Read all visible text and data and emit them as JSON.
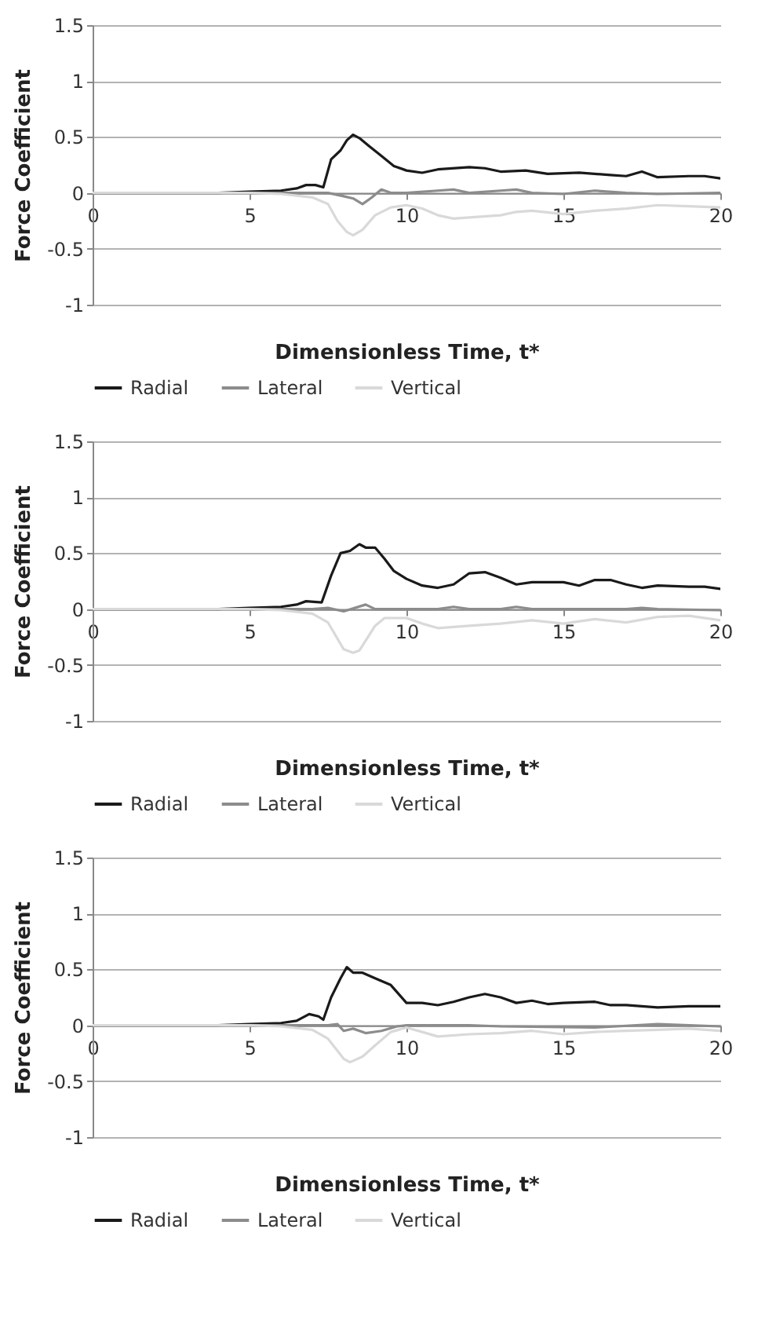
{
  "chart_data": [
    {
      "type": "line",
      "xlabel": "Dimensionless Time, t*",
      "ylabel": "Force Coefficient",
      "xlim": [
        0,
        20
      ],
      "ylim": [
        -1,
        1.5
      ],
      "xticks": [
        0,
        5,
        10,
        15,
        20
      ],
      "yticks": [
        -1,
        -0.5,
        0,
        0.5,
        1,
        1.5
      ],
      "grid": "y",
      "legend": "bottom",
      "series": [
        {
          "name": "Radial",
          "color": "#1a1a1a",
          "x": [
            0,
            4,
            5,
            6,
            6.5,
            6.8,
            7.1,
            7.35,
            7.6,
            7.9,
            8.1,
            8.3,
            8.5,
            8.8,
            9.2,
            9.6,
            10,
            10.5,
            11,
            12,
            12.5,
            13,
            13.8,
            14.5,
            15.5,
            16.5,
            17,
            17.5,
            18,
            19,
            19.5,
            20
          ],
          "values": [
            0,
            0,
            0.01,
            0.02,
            0.04,
            0.07,
            0.07,
            0.05,
            0.3,
            0.38,
            0.47,
            0.52,
            0.49,
            0.42,
            0.33,
            0.24,
            0.2,
            0.18,
            0.21,
            0.23,
            0.22,
            0.19,
            0.2,
            0.17,
            0.18,
            0.16,
            0.15,
            0.19,
            0.14,
            0.15,
            0.15,
            0.13
          ]
        },
        {
          "name": "Lateral",
          "color": "#8c8c8c",
          "x": [
            0,
            7.5,
            8,
            8.3,
            8.6,
            8.9,
            9.2,
            9.5,
            10,
            11,
            11.5,
            12,
            13,
            13.5,
            14,
            15,
            16,
            17,
            18,
            20
          ],
          "values": [
            0,
            0,
            -0.03,
            -0.05,
            -0.1,
            -0.04,
            0.03,
            0,
            0,
            0.02,
            0.03,
            0,
            0.02,
            0.03,
            0,
            -0.01,
            0.02,
            0,
            -0.01,
            0
          ]
        },
        {
          "name": "Vertical",
          "color": "#d9d9d9",
          "x": [
            0,
            5,
            6,
            7,
            7.5,
            7.8,
            8.1,
            8.3,
            8.6,
            9,
            9.5,
            10,
            10.5,
            11,
            11.5,
            12,
            13,
            13.5,
            14,
            15,
            16,
            17,
            18,
            19,
            20
          ],
          "values": [
            0,
            0,
            -0.01,
            -0.04,
            -0.1,
            -0.25,
            -0.35,
            -0.38,
            -0.33,
            -0.2,
            -0.13,
            -0.11,
            -0.14,
            -0.2,
            -0.23,
            -0.22,
            -0.2,
            -0.17,
            -0.16,
            -0.19,
            -0.16,
            -0.14,
            -0.11,
            -0.12,
            -0.13
          ]
        }
      ]
    },
    {
      "type": "line",
      "xlabel": "Dimensionless Time, t*",
      "ylabel": "Force Coefficient",
      "xlim": [
        0,
        20
      ],
      "ylim": [
        -1,
        1.5
      ],
      "xticks": [
        0,
        5,
        10,
        15,
        20
      ],
      "yticks": [
        -1,
        -0.5,
        0,
        0.5,
        1,
        1.5
      ],
      "grid": "y",
      "legend": "bottom",
      "series": [
        {
          "name": "Radial",
          "color": "#1a1a1a",
          "x": [
            0,
            4,
            5,
            6,
            6.5,
            6.8,
            7.3,
            7.6,
            7.9,
            8.2,
            8.5,
            8.7,
            9,
            9.3,
            9.6,
            10,
            10.5,
            11,
            11.5,
            12,
            12.5,
            13,
            13.5,
            14,
            15,
            15.5,
            16,
            16.5,
            17,
            17.5,
            18,
            19,
            19.5,
            20
          ],
          "values": [
            0,
            0,
            0.01,
            0.02,
            0.04,
            0.07,
            0.06,
            0.3,
            0.5,
            0.52,
            0.58,
            0.55,
            0.55,
            0.45,
            0.34,
            0.27,
            0.21,
            0.19,
            0.22,
            0.32,
            0.33,
            0.28,
            0.22,
            0.24,
            0.24,
            0.21,
            0.26,
            0.26,
            0.22,
            0.19,
            0.21,
            0.2,
            0.2,
            0.18
          ]
        },
        {
          "name": "Lateral",
          "color": "#8c8c8c",
          "x": [
            0,
            7,
            7.5,
            8,
            8.7,
            9,
            11,
            11.5,
            12,
            13,
            13.5,
            14,
            17,
            17.5,
            18,
            20
          ],
          "values": [
            0,
            0,
            0.01,
            -0.02,
            0.04,
            0,
            0,
            0.02,
            0,
            0,
            0.02,
            0,
            0,
            0.01,
            0,
            -0.01
          ]
        },
        {
          "name": "Vertical",
          "color": "#d9d9d9",
          "x": [
            0,
            5,
            6,
            7,
            7.5,
            8,
            8.3,
            8.5,
            9,
            9.3,
            10,
            10.5,
            11,
            12,
            13,
            14,
            15,
            16,
            17,
            18,
            19,
            20
          ],
          "values": [
            0,
            0,
            -0.01,
            -0.04,
            -0.12,
            -0.36,
            -0.39,
            -0.37,
            -0.15,
            -0.08,
            -0.08,
            -0.13,
            -0.17,
            -0.15,
            -0.13,
            -0.1,
            -0.13,
            -0.09,
            -0.12,
            -0.07,
            -0.06,
            -0.1
          ]
        }
      ]
    },
    {
      "type": "line",
      "xlabel": "Dimensionless Time, t*",
      "ylabel": "Force Coefficient",
      "xlim": [
        0,
        20
      ],
      "ylim": [
        -1,
        1.5
      ],
      "xticks": [
        0,
        5,
        10,
        15,
        20
      ],
      "yticks": [
        -1,
        -0.5,
        0,
        0.5,
        1,
        1.5
      ],
      "grid": "y",
      "legend": "bottom",
      "series": [
        {
          "name": "Radial",
          "color": "#1a1a1a",
          "x": [
            0,
            4,
            5,
            6,
            6.5,
            6.9,
            7.2,
            7.35,
            7.6,
            7.9,
            8.1,
            8.3,
            8.6,
            9,
            9.5,
            10,
            10.5,
            11,
            11.5,
            12,
            12.5,
            13,
            13.5,
            14,
            14.5,
            15,
            16,
            16.5,
            17,
            18,
            19,
            20
          ],
          "values": [
            0,
            0,
            0.01,
            0.02,
            0.04,
            0.1,
            0.08,
            0.05,
            0.25,
            0.42,
            0.52,
            0.47,
            0.47,
            0.42,
            0.36,
            0.2,
            0.2,
            0.18,
            0.21,
            0.25,
            0.28,
            0.25,
            0.2,
            0.22,
            0.19,
            0.2,
            0.21,
            0.18,
            0.18,
            0.16,
            0.17,
            0.17
          ]
        },
        {
          "name": "Lateral",
          "color": "#8c8c8c",
          "x": [
            0,
            7.5,
            7.8,
            8,
            8.3,
            8.7,
            9.2,
            9.7,
            10,
            12,
            13,
            16,
            18,
            20
          ],
          "values": [
            0,
            0,
            0.01,
            -0.05,
            -0.03,
            -0.07,
            -0.05,
            -0.01,
            0,
            0,
            -0.01,
            -0.02,
            0.01,
            -0.01
          ]
        },
        {
          "name": "Vertical",
          "color": "#d9d9d9",
          "x": [
            0,
            5,
            6,
            7,
            7.5,
            8,
            8.2,
            8.6,
            9,
            9.5,
            10,
            10.5,
            11,
            12,
            13,
            14,
            15,
            16,
            17,
            18,
            19,
            20
          ],
          "values": [
            0,
            0,
            -0.01,
            -0.04,
            -0.12,
            -0.3,
            -0.33,
            -0.28,
            -0.18,
            -0.06,
            -0.02,
            -0.06,
            -0.1,
            -0.08,
            -0.07,
            -0.05,
            -0.08,
            -0.06,
            -0.05,
            -0.04,
            -0.03,
            -0.05
          ]
        }
      ]
    }
  ]
}
